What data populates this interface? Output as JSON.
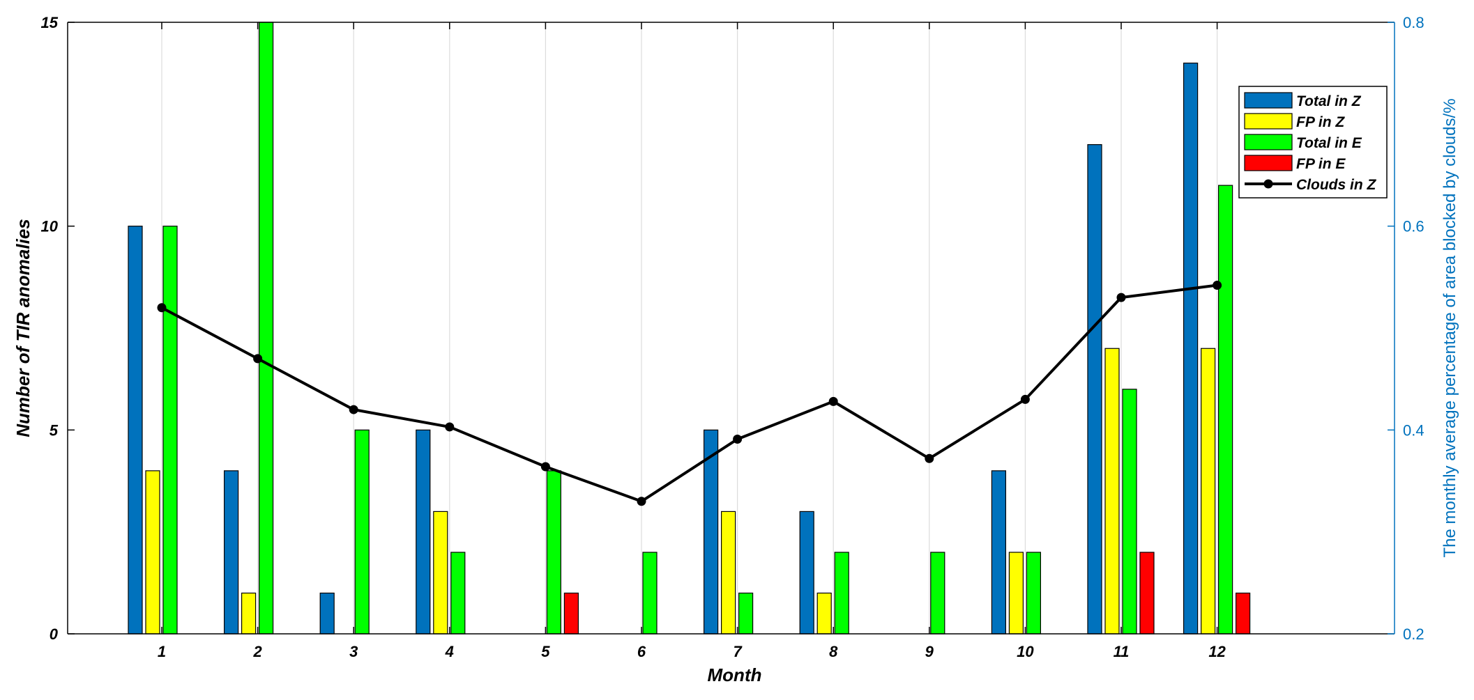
{
  "chart_data": {
    "type": "bar",
    "categories": [
      "1",
      "2",
      "3",
      "4",
      "5",
      "6",
      "7",
      "8",
      "9",
      "10",
      "11",
      "12"
    ],
    "xlabel": "Month",
    "ylabel": "Number of TIR anomalies",
    "y2label": "The monthly average percentage of area blocked by clouds/%",
    "ylim": [
      0,
      15
    ],
    "yticks": [
      "0",
      "5",
      "10",
      "15"
    ],
    "y2lim": [
      0.2,
      0.8
    ],
    "y2ticks": [
      "0.2",
      "0.4",
      "0.6",
      "0.8"
    ],
    "grid": "vertical",
    "legend_position": "top-right",
    "series": [
      {
        "name": "Total in Z",
        "type": "bar",
        "color": "#0072BD",
        "values": [
          10,
          4,
          1,
          5,
          0,
          0,
          5,
          3,
          0,
          4,
          12,
          14
        ]
      },
      {
        "name": "FP in Z",
        "type": "bar",
        "color": "#FFFF00",
        "values": [
          4,
          1,
          0,
          3,
          0,
          0,
          3,
          1,
          0,
          2,
          7,
          7
        ]
      },
      {
        "name": "Total in E",
        "type": "bar",
        "color": "#00FF00",
        "values": [
          10,
          15,
          5,
          2,
          4,
          2,
          1,
          2,
          2,
          2,
          6,
          11
        ]
      },
      {
        "name": "FP in E",
        "type": "bar",
        "color": "#FF0000",
        "values": [
          0,
          0,
          0,
          0,
          1,
          0,
          0,
          0,
          0,
          0,
          2,
          1
        ]
      },
      {
        "name": "Clouds in Z",
        "type": "line",
        "axis": "right",
        "color": "#000000",
        "values": [
          0.52,
          0.47,
          0.42,
          0.403,
          0.364,
          0.33,
          0.391,
          0.428,
          0.372,
          0.43,
          0.53,
          0.542
        ]
      }
    ]
  }
}
